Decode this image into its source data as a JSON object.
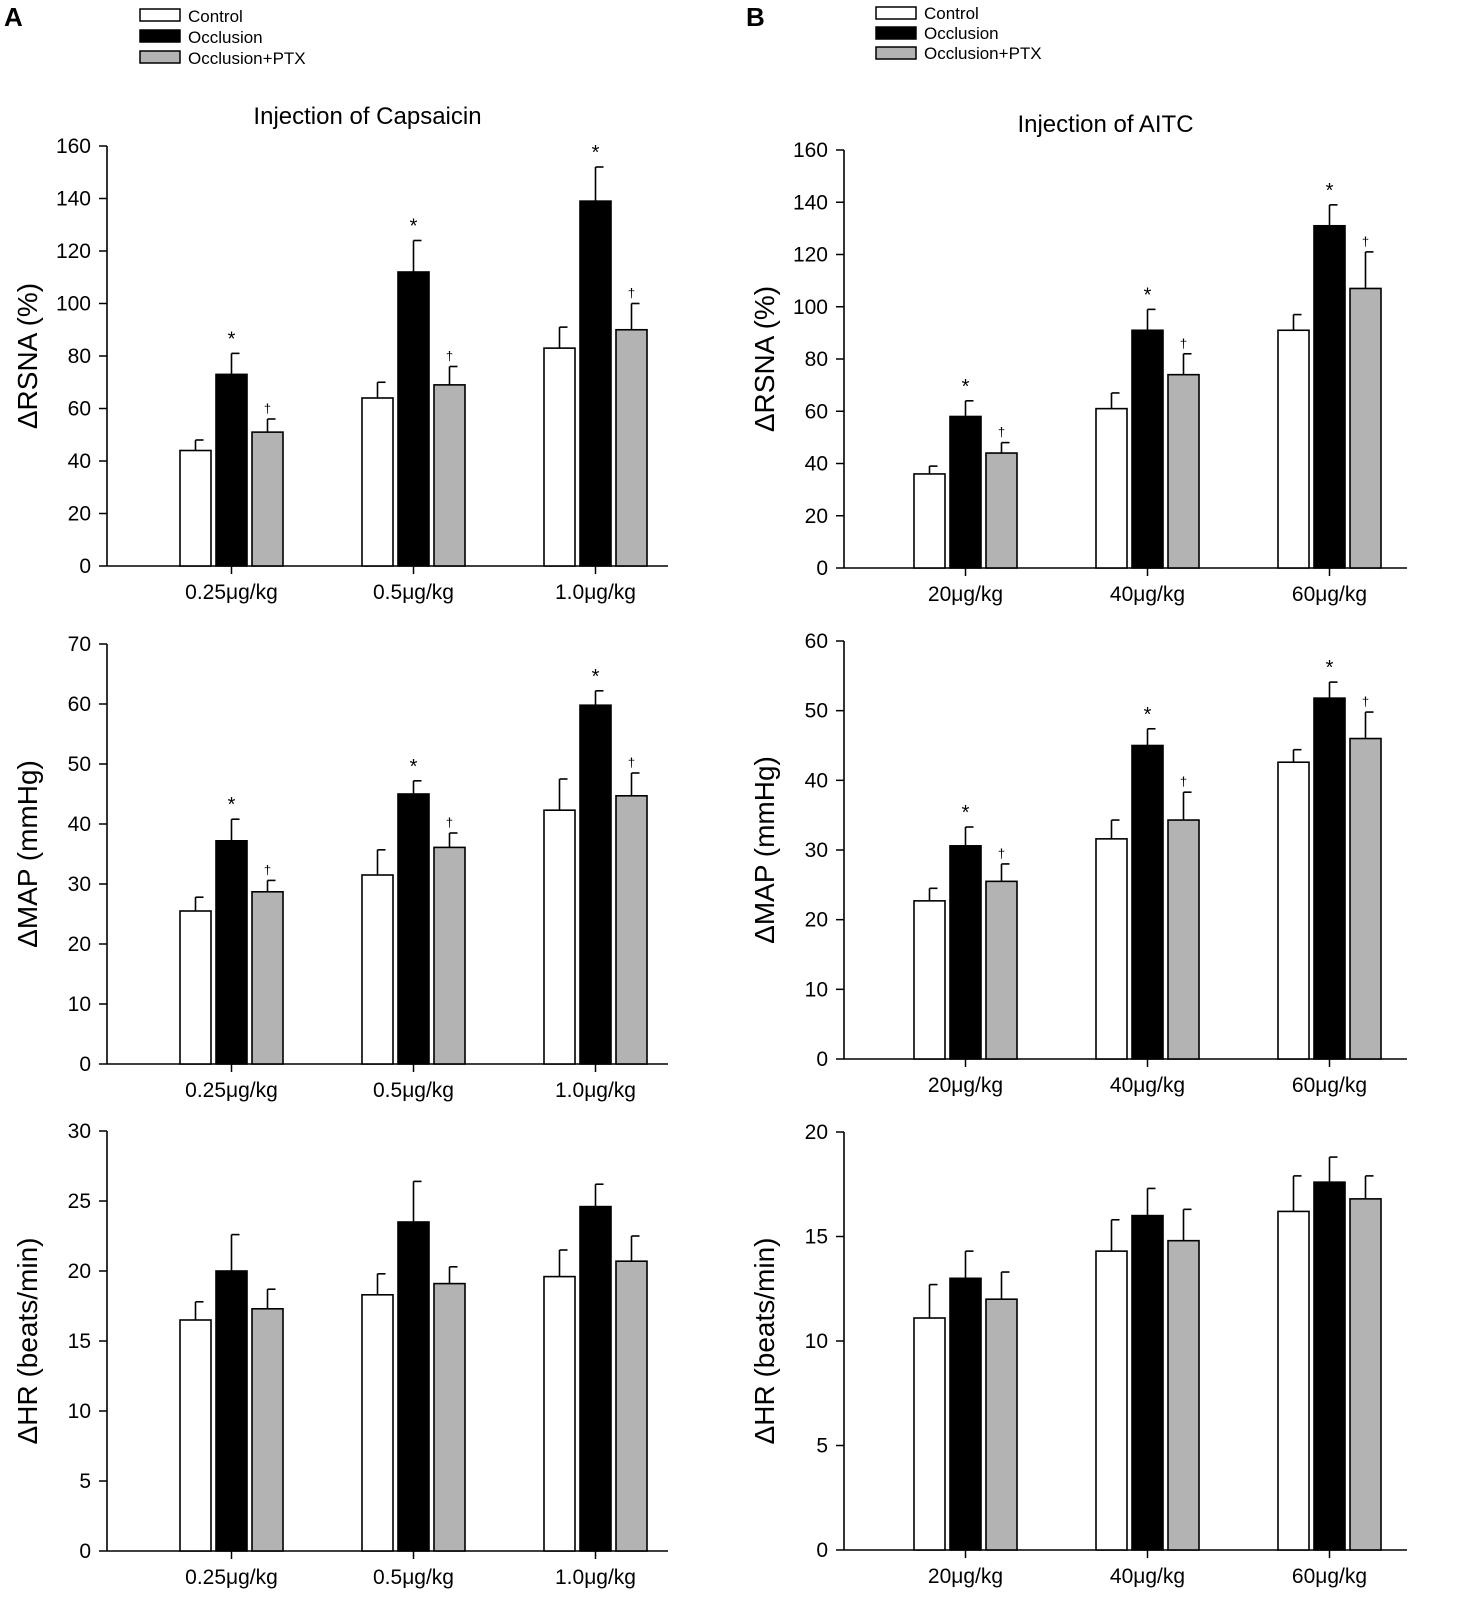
{
  "panels": [
    {
      "letter": "A",
      "legend": [
        {
          "label": "Control",
          "color": "#ffffff"
        },
        {
          "label": "Occlusion",
          "color": "#000000"
        },
        {
          "label": "Occlusion+PTX",
          "color": "#b3b3b3"
        }
      ]
    },
    {
      "letter": "B",
      "legend": [
        {
          "label": "Control",
          "color": "#ffffff"
        },
        {
          "label": "Occlusion",
          "color": "#000000"
        },
        {
          "label": "Occlusion+PTX",
          "color": "#b3b3b3"
        }
      ]
    }
  ],
  "chart_data": [
    {
      "type": "bar",
      "id": "A1",
      "title": "Injection of Capsaicin",
      "ylabel": "ΔRSNA (%)",
      "xlabel": "",
      "categories": [
        "0.25μg/kg",
        "0.5μg/kg",
        "1.0μg/kg"
      ],
      "ylim": [
        0,
        160
      ],
      "yticks": [
        0,
        20,
        40,
        60,
        80,
        100,
        120,
        140,
        160
      ],
      "series": [
        {
          "name": "Control",
          "color": "#ffffff",
          "values": [
            44,
            64,
            83
          ],
          "errors": [
            4,
            6,
            8
          ]
        },
        {
          "name": "Occlusion",
          "color": "#000000",
          "values": [
            73,
            112,
            139
          ],
          "errors": [
            8,
            12,
            13
          ]
        },
        {
          "name": "Occlusion+PTX",
          "color": "#b3b3b3",
          "values": [
            51,
            69,
            90
          ],
          "errors": [
            5,
            7,
            10
          ]
        }
      ],
      "marks": [
        {
          "series": 1,
          "cat": 0,
          "symbol": "*"
        },
        {
          "series": 2,
          "cat": 0,
          "symbol": "†"
        },
        {
          "series": 1,
          "cat": 1,
          "symbol": "*"
        },
        {
          "series": 2,
          "cat": 1,
          "symbol": "†"
        },
        {
          "series": 1,
          "cat": 2,
          "symbol": "*"
        },
        {
          "series": 2,
          "cat": 2,
          "symbol": "†"
        }
      ]
    },
    {
      "type": "bar",
      "id": "B1",
      "title": "Injection of AITC",
      "ylabel": "ΔRSNA (%)",
      "xlabel": "",
      "categories": [
        "20μg/kg",
        "40μg/kg",
        "60μg/kg"
      ],
      "ylim": [
        0,
        160
      ],
      "yticks": [
        0,
        20,
        40,
        60,
        80,
        100,
        120,
        140,
        160
      ],
      "series": [
        {
          "name": "Control",
          "color": "#ffffff",
          "values": [
            36,
            61,
            91
          ],
          "errors": [
            3,
            6,
            6
          ]
        },
        {
          "name": "Occlusion",
          "color": "#000000",
          "values": [
            58,
            91,
            131
          ],
          "errors": [
            6,
            8,
            8
          ]
        },
        {
          "name": "Occlusion+PTX",
          "color": "#b3b3b3",
          "values": [
            44,
            74,
            107
          ],
          "errors": [
            4,
            8,
            14
          ]
        }
      ],
      "marks": [
        {
          "series": 1,
          "cat": 0,
          "symbol": "*"
        },
        {
          "series": 2,
          "cat": 0,
          "symbol": "†"
        },
        {
          "series": 1,
          "cat": 1,
          "symbol": "*"
        },
        {
          "series": 2,
          "cat": 1,
          "symbol": "†"
        },
        {
          "series": 1,
          "cat": 2,
          "symbol": "*"
        },
        {
          "series": 2,
          "cat": 2,
          "symbol": "†"
        }
      ]
    },
    {
      "type": "bar",
      "id": "A2",
      "title": "",
      "ylabel": "ΔMAP (mmHg)",
      "xlabel": "",
      "categories": [
        "0.25μg/kg",
        "0.5μg/kg",
        "1.0μg/kg"
      ],
      "ylim": [
        0,
        70
      ],
      "yticks": [
        0,
        10,
        20,
        30,
        40,
        50,
        60,
        70
      ],
      "series": [
        {
          "name": "Control",
          "color": "#ffffff",
          "values": [
            25.5,
            31.5,
            42.3
          ],
          "errors": [
            2.3,
            4.2,
            5.2
          ]
        },
        {
          "name": "Occlusion",
          "color": "#000000",
          "values": [
            37.2,
            45,
            59.8
          ],
          "errors": [
            3.6,
            2.2,
            2.4
          ]
        },
        {
          "name": "Occlusion+PTX",
          "color": "#b3b3b3",
          "values": [
            28.7,
            36.1,
            44.7
          ],
          "errors": [
            1.9,
            2.4,
            3.8
          ]
        }
      ],
      "marks": [
        {
          "series": 1,
          "cat": 0,
          "symbol": "*"
        },
        {
          "series": 2,
          "cat": 0,
          "symbol": "†"
        },
        {
          "series": 1,
          "cat": 1,
          "symbol": "*"
        },
        {
          "series": 2,
          "cat": 1,
          "symbol": "†"
        },
        {
          "series": 1,
          "cat": 2,
          "symbol": "*"
        },
        {
          "series": 2,
          "cat": 2,
          "symbol": "†"
        }
      ]
    },
    {
      "type": "bar",
      "id": "B2",
      "title": "",
      "ylabel": "ΔMAP (mmHg)",
      "xlabel": "",
      "categories": [
        "20μg/kg",
        "40μg/kg",
        "60μg/kg"
      ],
      "ylim": [
        0,
        60
      ],
      "yticks": [
        0,
        10,
        20,
        30,
        40,
        50,
        60
      ],
      "series": [
        {
          "name": "Control",
          "color": "#ffffff",
          "values": [
            22.7,
            31.6,
            42.6
          ],
          "errors": [
            1.8,
            2.7,
            1.8
          ]
        },
        {
          "name": "Occlusion",
          "color": "#000000",
          "values": [
            30.6,
            45,
            51.8
          ],
          "errors": [
            2.7,
            2.4,
            2.3
          ]
        },
        {
          "name": "Occlusion+PTX",
          "color": "#b3b3b3",
          "values": [
            25.5,
            34.3,
            46
          ],
          "errors": [
            2.5,
            4,
            3.8
          ]
        }
      ],
      "marks": [
        {
          "series": 1,
          "cat": 0,
          "symbol": "*"
        },
        {
          "series": 2,
          "cat": 0,
          "symbol": "†"
        },
        {
          "series": 1,
          "cat": 1,
          "symbol": "*"
        },
        {
          "series": 2,
          "cat": 1,
          "symbol": "†"
        },
        {
          "series": 1,
          "cat": 2,
          "symbol": "*"
        },
        {
          "series": 2,
          "cat": 2,
          "symbol": "†"
        }
      ]
    },
    {
      "type": "bar",
      "id": "A3",
      "title": "",
      "ylabel": "ΔHR (beats/min)",
      "xlabel": "",
      "categories": [
        "0.25μg/kg",
        "0.5μg/kg",
        "1.0μg/kg"
      ],
      "ylim": [
        0,
        30
      ],
      "yticks": [
        0,
        5,
        10,
        15,
        20,
        25,
        30
      ],
      "series": [
        {
          "name": "Control",
          "color": "#ffffff",
          "values": [
            16.5,
            18.3,
            19.6
          ],
          "errors": [
            1.3,
            1.5,
            1.9
          ]
        },
        {
          "name": "Occlusion",
          "color": "#000000",
          "values": [
            20,
            23.5,
            24.6
          ],
          "errors": [
            2.6,
            2.9,
            1.6
          ]
        },
        {
          "name": "Occlusion+PTX",
          "color": "#b3b3b3",
          "values": [
            17.3,
            19.1,
            20.7
          ],
          "errors": [
            1.4,
            1.2,
            1.8
          ]
        }
      ],
      "marks": []
    },
    {
      "type": "bar",
      "id": "B3",
      "title": "",
      "ylabel": "ΔHR (beats/min)",
      "xlabel": "",
      "categories": [
        "20μg/kg",
        "40μg/kg",
        "60μg/kg"
      ],
      "ylim": [
        0,
        20
      ],
      "yticks": [
        0,
        5,
        10,
        15,
        20
      ],
      "series": [
        {
          "name": "Control",
          "color": "#ffffff",
          "values": [
            11.1,
            14.3,
            16.2
          ],
          "errors": [
            1.6,
            1.5,
            1.7
          ]
        },
        {
          "name": "Occlusion",
          "color": "#000000",
          "values": [
            13,
            16,
            17.6
          ],
          "errors": [
            1.3,
            1.3,
            1.2
          ]
        },
        {
          "name": "Occlusion+PTX",
          "color": "#b3b3b3",
          "values": [
            12,
            14.8,
            16.8
          ],
          "errors": [
            1.3,
            1.5,
            1.1
          ]
        }
      ],
      "marks": []
    }
  ]
}
